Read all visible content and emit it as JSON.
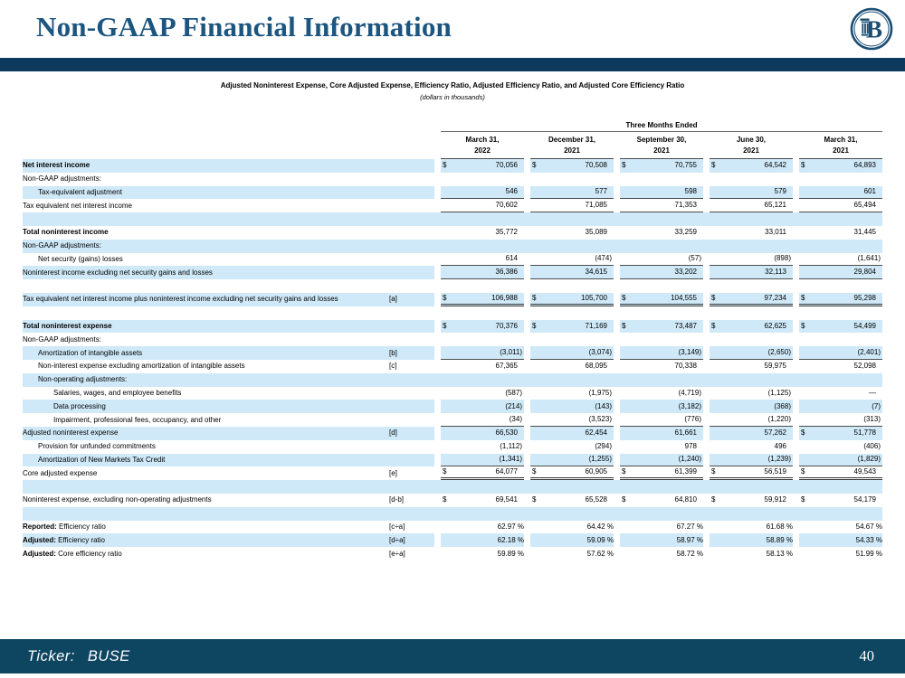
{
  "slide": {
    "title": "Non-GAAP Financial Information",
    "ticker_label": "Ticker:",
    "ticker_value": "BUSE",
    "page_number": "40",
    "logo_letter": "B"
  },
  "colors": {
    "title_text": "#1b5580",
    "top_bar": "#0d3a5c",
    "footer_bar": "#0e4560",
    "row_shade": "#cfe9f8",
    "logo": "#1b4e74"
  },
  "table": {
    "title": "Adjusted Noninterest Expense, Core Adjusted Expense, Efficiency Ratio, Adjusted Efficiency Ratio, and Adjusted Core Efficiency Ratio",
    "subtitle": "(dollars in thousands)",
    "period_header": "Three Months Ended",
    "columns": [
      {
        "line1": "March 31,",
        "line2": "2022"
      },
      {
        "line1": "December 31,",
        "line2": "2021"
      },
      {
        "line1": "September 30,",
        "line2": "2021"
      },
      {
        "line1": "June 30,",
        "line2": "2021"
      },
      {
        "line1": "March 31,",
        "line2": "2021"
      }
    ],
    "rows": [
      {
        "label": "Net interest income",
        "bold": true,
        "shade": true,
        "dollars": [
          true,
          true,
          true,
          true,
          true
        ],
        "values": [
          "70,056",
          "70,508",
          "70,755",
          "64,542",
          "64,893"
        ]
      },
      {
        "label": "Non-GAAP adjustments:",
        "shade": false
      },
      {
        "label": "Tax-equivalent adjustment",
        "indent": 1,
        "shade": true,
        "rule": "single",
        "values": [
          "546",
          "577",
          "598",
          "579",
          "601"
        ]
      },
      {
        "label": "Tax equivalent net interest income",
        "shade": false,
        "rule": "single",
        "values": [
          "70,602",
          "71,085",
          "71,353",
          "65,121",
          "65,494"
        ]
      },
      {
        "label": "",
        "shade": true
      },
      {
        "label": "Total noninterest income",
        "bold": true,
        "shade": false,
        "values": [
          "35,772",
          "35,089",
          "33,259",
          "33,011",
          "31,445"
        ]
      },
      {
        "label": "Non-GAAP adjustments:",
        "shade": true
      },
      {
        "label": "Net security (gains) losses",
        "indent": 1,
        "shade": false,
        "rule": "single",
        "values": [
          "614",
          "(474)",
          "(57)",
          "(898)",
          "(1,641)"
        ]
      },
      {
        "label": "Noninterest income excluding net security gains and losses",
        "shade": true,
        "rule": "single",
        "values": [
          "36,386",
          "34,615",
          "33,202",
          "32,113",
          "29,804"
        ]
      },
      {
        "label": "",
        "shade": false
      },
      {
        "label": "Tax equivalent net interest income plus noninterest income excluding net security gains and losses",
        "ref": "[a]",
        "shade": true,
        "rule": "double",
        "dollars": [
          true,
          true,
          true,
          true,
          true
        ],
        "values": [
          "106,988",
          "105,700",
          "104,555",
          "97,234",
          "95,298"
        ]
      },
      {
        "label": "",
        "shade": false
      },
      {
        "label": "Total noninterest expense",
        "bold": true,
        "shade": true,
        "dollars": [
          true,
          true,
          true,
          true,
          true
        ],
        "values": [
          "70,376",
          "71,169",
          "73,487",
          "62,625",
          "54,499"
        ]
      },
      {
        "label": "Non-GAAP adjustments:",
        "shade": false
      },
      {
        "label": "Amortization of intangible assets",
        "ref": "[b]",
        "indent": 1,
        "shade": true,
        "rule": "single",
        "values": [
          "(3,011)",
          "(3,074)",
          "(3,149)",
          "(2,650)",
          "(2,401)"
        ]
      },
      {
        "label": "Non-interest expense excluding amortization of intangible assets",
        "ref": "[c]",
        "indent": 1,
        "shade": false,
        "values": [
          "67,365",
          "68,095",
          "70,338",
          "59,975",
          "52,098"
        ]
      },
      {
        "label": "Non-operating adjustments:",
        "indent": 1,
        "shade": true
      },
      {
        "label": "Salaries, wages, and employee benefits",
        "indent": 2,
        "shade": false,
        "values": [
          "(587)",
          "(1,975)",
          "(4,719)",
          "(1,125)",
          "—"
        ]
      },
      {
        "label": "Data processing",
        "indent": 2,
        "shade": true,
        "values": [
          "(214)",
          "(143)",
          "(3,182)",
          "(368)",
          "(7)"
        ]
      },
      {
        "label": "Impairment, professional fees, occupancy, and other",
        "indent": 2,
        "shade": false,
        "rule": "single",
        "values": [
          "(34)",
          "(3,523)",
          "(776)",
          "(1,220)",
          "(313)"
        ]
      },
      {
        "label": "Adjusted noninterest expense",
        "ref": "[d]",
        "shade": true,
        "dollars": [
          false,
          false,
          false,
          false,
          true
        ],
        "values": [
          "66,530",
          "62,454",
          "61,661",
          "57,262",
          "51,778"
        ]
      },
      {
        "label": "Provision for unfunded commitments",
        "indent": 1,
        "shade": false,
        "values": [
          "(1,112)",
          "(294)",
          "978",
          "496",
          "(406)"
        ]
      },
      {
        "label": "Amortization of New Markets Tax Credit",
        "indent": 1,
        "shade": true,
        "rule": "single",
        "values": [
          "(1,341)",
          "(1,255)",
          "(1,240)",
          "(1,239)",
          "(1,829)"
        ]
      },
      {
        "label": "Core adjusted expense",
        "ref": "[e]",
        "shade": false,
        "rule": "double",
        "dollars": [
          true,
          true,
          true,
          true,
          true
        ],
        "values": [
          "64,077",
          "60,905",
          "61,399",
          "56,519",
          "49,543"
        ]
      },
      {
        "label": "",
        "shade": true
      },
      {
        "label": "Noninterest expense, excluding non-operating adjustments",
        "ref": "[d-b]",
        "shade": false,
        "dollars": [
          true,
          true,
          true,
          true,
          true
        ],
        "values": [
          "69,541",
          "65,528",
          "64,810",
          "59,912",
          "54,179"
        ]
      },
      {
        "label": "",
        "shade": true
      },
      {
        "prefix": "Reported:",
        "label": "Efficiency ratio",
        "ref": "[c÷a]",
        "shade": false,
        "values": [
          "62.97 %",
          "64.42 %",
          "67.27 %",
          "61.68 %",
          "54.67 %"
        ]
      },
      {
        "prefix": "Adjusted:",
        "label": "Efficiency ratio",
        "ref": "[d÷a]",
        "shade": true,
        "values": [
          "62.18 %",
          "59.09 %",
          "58.97 %",
          "58.89 %",
          "54.33 %"
        ]
      },
      {
        "prefix": "Adjusted:",
        "label": "Core efficiency ratio",
        "ref": "[e÷a]",
        "shade": false,
        "values": [
          "59.89 %",
          "57.62 %",
          "58.72 %",
          "58.13 %",
          "51.99 %"
        ]
      }
    ]
  }
}
